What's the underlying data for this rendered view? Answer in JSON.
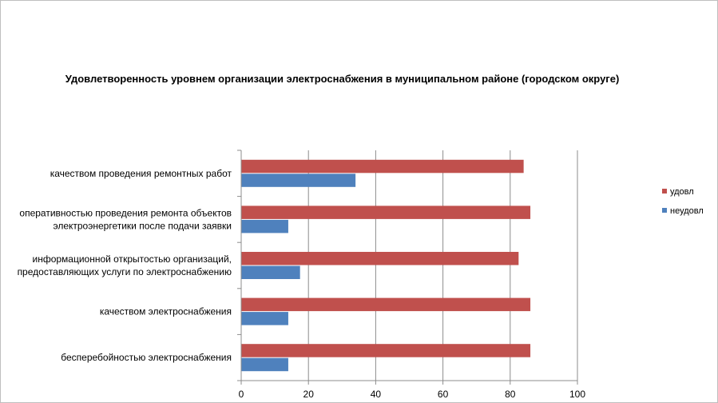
{
  "chart_data": {
    "type": "bar",
    "orientation": "horizontal",
    "title": "Удовлетворенность уровнем организации электроснабжения в муниципальном районе (городском округе)",
    "categories": [
      [
        "качеством проведения ремонтных работ"
      ],
      [
        "оперативностью проведения ремонта объектов",
        "электроэнергетики после подачи заявки"
      ],
      [
        "информационной открытостью организаций,",
        "предоставляющих услуги по электроснабжению"
      ],
      [
        "качеством электроснабжения"
      ],
      [
        "бесперебойностью электроснабжения"
      ]
    ],
    "series": [
      {
        "name": "удовл",
        "color": "#c0504d",
        "values": [
          84,
          86,
          82.5,
          86,
          86
        ]
      },
      {
        "name": "неудовл",
        "color": "#4f81bd",
        "values": [
          34,
          14,
          17.5,
          14,
          14
        ]
      }
    ],
    "xlim": [
      0,
      100
    ],
    "xticks": [
      0,
      20,
      40,
      60,
      80,
      100
    ],
    "grid": "vertical",
    "legend_position": "right"
  }
}
